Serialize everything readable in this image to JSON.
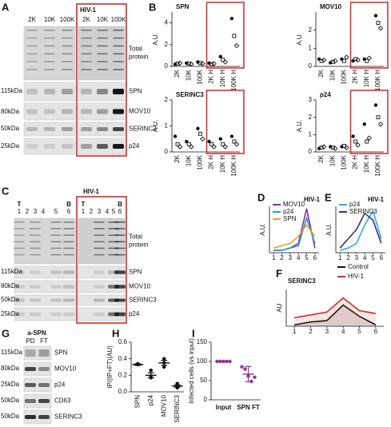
{
  "panel_letters": [
    "A",
    "B",
    "C",
    "D",
    "E",
    "F",
    "G",
    "H",
    "I"
  ],
  "blots": {
    "A": {
      "lanes": [
        "2K",
        "10K",
        "100K"
      ],
      "hiv_label": "HIV-1",
      "hiv_lanes": [
        "2K",
        "10K",
        "100K"
      ],
      "rows": [
        "Total protein",
        "SPN",
        "MOV10",
        "SERINC3",
        "p24"
      ],
      "markers": [
        "115kDa",
        "80kDa",
        "50kDa",
        "25kDa"
      ]
    },
    "C": {
      "lane_top": [
        "T",
        "B"
      ],
      "lanes": [
        "1",
        "2",
        "3",
        "4",
        "5",
        "6"
      ],
      "hiv_label": "HIV-1",
      "hiv_lane_top": [
        "T",
        "B"
      ],
      "hiv_lanes": [
        "1",
        "2",
        "3",
        "4",
        "5",
        "6"
      ],
      "rows": [
        "Total protein",
        "SPN",
        "MOV10",
        "SERINC3",
        "p24"
      ],
      "markers": [
        "115kDa",
        "80kDa",
        "50kDa",
        "25kDa"
      ]
    },
    "G": {
      "title": "a-SPN",
      "lanes": [
        "PD",
        "FT"
      ],
      "rows": [
        "SPN",
        "MOV10",
        "p24",
        "CD63",
        "SERINC3"
      ],
      "markers": [
        "115kDa",
        "80kDa",
        "25kDa",
        "50kDa",
        "50kDa"
      ]
    }
  },
  "chart_data": [
    {
      "type": "scatter",
      "title": "SPN",
      "ylabel": "A.U.",
      "categories": [
        "2K",
        "10K",
        "100K",
        "2K H",
        "10K H",
        "100K H"
      ],
      "ylim": [
        0,
        5
      ],
      "yticks": [
        0,
        2,
        4
      ],
      "color": "#111111",
      "series": [
        {
          "marker": "circle",
          "values": [
            0.2,
            0.3,
            0.4,
            0.3,
            0.9,
            4.4
          ]
        },
        {
          "marker": "square",
          "values": [
            0.25,
            0.25,
            0.3,
            0.2,
            0.6,
            2.8
          ]
        },
        {
          "marker": "diamond",
          "values": [
            0.3,
            0.2,
            0.25,
            0.25,
            0.4,
            1.9
          ]
        }
      ]
    },
    {
      "type": "scatter",
      "title": "MOV10",
      "ylabel": "A.U.",
      "categories": [
        "2K",
        "10K",
        "100K",
        "2K H",
        "10K H",
        "100K H"
      ],
      "ylim": [
        0,
        3
      ],
      "yticks": [
        0,
        1,
        2
      ],
      "color": "#111111",
      "series": [
        {
          "marker": "circle",
          "values": [
            0.4,
            0.2,
            0.4,
            0.3,
            0.4,
            2.8
          ]
        },
        {
          "marker": "square",
          "values": [
            0.3,
            0.25,
            0.3,
            0.4,
            0.3,
            2.4
          ]
        },
        {
          "marker": "diamond",
          "values": [
            0.35,
            0.3,
            0.5,
            0.35,
            0.45,
            2.1
          ]
        }
      ]
    },
    {
      "type": "scatter",
      "title": "SERINC3",
      "ylabel": "A.U.",
      "categories": [
        "2K",
        "10K",
        "100K",
        "2K H",
        "10K H",
        "100K H"
      ],
      "ylim": [
        0,
        2
      ],
      "yticks": [
        0,
        1,
        2
      ],
      "color": "#111111",
      "series": [
        {
          "marker": "circle",
          "values": [
            0.6,
            0.4,
            0.9,
            0.4,
            0.5,
            0.6
          ]
        },
        {
          "marker": "square",
          "values": [
            0.3,
            0.3,
            0.7,
            0.3,
            0.3,
            0.4
          ]
        },
        {
          "marker": "diamond",
          "values": [
            0.2,
            0.2,
            0.5,
            0.2,
            0.2,
            0.3
          ]
        }
      ]
    },
    {
      "type": "scatter",
      "title": "p24",
      "ylabel": "A.U.",
      "categories": [
        "2K",
        "10K",
        "100K",
        "2K H",
        "10K H",
        "100K H"
      ],
      "ylim": [
        0,
        3
      ],
      "yticks": [
        0,
        1,
        2,
        3
      ],
      "color": "#111111",
      "series": [
        {
          "marker": "circle",
          "values": [
            0.2,
            0.3,
            0.3,
            0.9,
            1.6,
            2.7
          ]
        },
        {
          "marker": "square",
          "values": [
            0.25,
            0.25,
            0.35,
            0.6,
            0.6,
            2.0
          ]
        },
        {
          "marker": "diamond",
          "values": [
            0.3,
            0.2,
            0.25,
            0.4,
            0.8,
            1.6
          ]
        }
      ]
    },
    {
      "type": "line",
      "title": "HIV-1",
      "title_color": "#d62728",
      "ylabel": "A.U.",
      "legend": "top-left",
      "x": [
        1,
        2,
        3,
        4,
        5,
        6
      ],
      "xlim": [
        0.5,
        6.5
      ],
      "xticks": [
        1,
        2,
        3,
        4,
        5,
        6
      ],
      "ylim": [
        0,
        1
      ],
      "series": [
        {
          "name": "MOV10",
          "color": "#8e2c9a",
          "values": [
            0.05,
            0.05,
            0.1,
            0.2,
            0.95,
            0.1
          ]
        },
        {
          "name": "p24",
          "color": "#1f9ad6",
          "values": [
            0.05,
            0.05,
            0.1,
            0.15,
            0.75,
            0.2
          ]
        },
        {
          "name": "SPN",
          "color": "#f0a020",
          "values": [
            0.1,
            0.15,
            0.2,
            0.35,
            0.6,
            0.35
          ]
        }
      ]
    },
    {
      "type": "line",
      "title": "HIV-1",
      "title_color": "#d62728",
      "ylabel": "A.U.",
      "legend": "top-left",
      "x": [
        1,
        2,
        3,
        4,
        5,
        6
      ],
      "xlim": [
        0.5,
        6.5
      ],
      "xticks": [
        1,
        2,
        3,
        4,
        5,
        6
      ],
      "ylim": [
        0,
        1
      ],
      "series": [
        {
          "name": "p24",
          "color": "#2fa8e8",
          "values": [
            0.05,
            0.1,
            0.2,
            0.6,
            0.9,
            0.3
          ]
        },
        {
          "name": "SERINC3",
          "color": "#3b2a8c",
          "values": [
            0.1,
            0.3,
            0.5,
            0.85,
            0.7,
            0.2
          ]
        }
      ]
    },
    {
      "type": "area",
      "title": "SERINC3",
      "ylabel": "AU",
      "legend": "top-right",
      "x": [
        1,
        2,
        3,
        4,
        5,
        6
      ],
      "xlim": [
        0.5,
        6.5
      ],
      "xticks": [
        1,
        2,
        3,
        4,
        5,
        6
      ],
      "ylim": [
        0,
        1.3
      ],
      "series": [
        {
          "name": "Control",
          "color": "#111111",
          "values": [
            0.05,
            0.15,
            0.2,
            0.75,
            0.35,
            0.05
          ]
        },
        {
          "name": "HIV-1",
          "color": "#d62728",
          "values": [
            0.3,
            0.4,
            0.5,
            1.0,
            0.55,
            0.45
          ]
        }
      ]
    },
    {
      "type": "scatter",
      "ylabel": "IP/(IP+FT)(AU)",
      "categories": [
        "SPN",
        "p24",
        "MOV10",
        "SERINC3"
      ],
      "ylim": [
        0,
        0.6
      ],
      "yticks": [
        {
          "value": 0,
          "label": "0.0"
        },
        {
          "value": 0.2,
          "label": "0.2"
        },
        {
          "value": 0.4,
          "label": "0.4"
        },
        {
          "value": 0.6,
          "label": "0.6"
        }
      ],
      "color": "#111111",
      "series": [
        {
          "marker": "circle",
          "values": [
            0.33,
            0.26,
            0.4,
            0.1
          ]
        },
        {
          "marker": "circle",
          "values": [
            0.34,
            0.17,
            0.3,
            0.06
          ]
        },
        {
          "marker": "circle",
          "values": [
            0.33,
            0.19,
            0.35,
            0.05
          ]
        }
      ],
      "means": [
        0.33,
        0.2,
        0.35,
        0.07
      ],
      "errors": [
        0.01,
        0.03,
        0.03,
        0.015
      ]
    },
    {
      "type": "scatter",
      "ylabel": "Infected cells (vs input)",
      "categories": [
        "Input",
        "SPN FT"
      ],
      "ylim": [
        0,
        150
      ],
      "yticks": [
        0,
        50,
        100,
        150
      ],
      "color": "#9b2f8e",
      "series": [
        {
          "marker": "circle",
          "values": [
            100,
            86
          ]
        },
        {
          "marker": "circle",
          "values": [
            100,
            80
          ]
        },
        {
          "marker": "circle",
          "values": [
            100,
            62
          ]
        },
        {
          "marker": "circle",
          "values": [
            100,
            48
          ]
        },
        {
          "marker": "circle",
          "values": [
            100,
            59
          ]
        }
      ],
      "means": [
        100,
        67
      ],
      "errors": [
        0,
        20
      ]
    }
  ]
}
